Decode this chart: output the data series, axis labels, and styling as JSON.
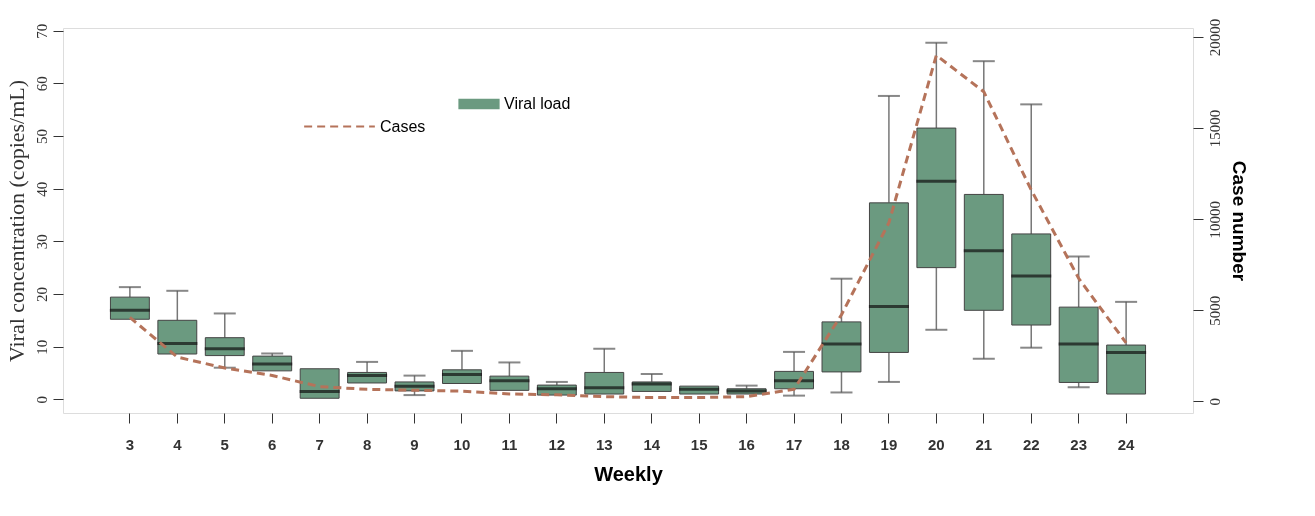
{
  "chart_data": {
    "type": "box",
    "xlabel": "Weekly",
    "ylabel": "Viral concentration (copies/mL)",
    "y2label": "Case number",
    "categories": [
      "3",
      "4",
      "5",
      "6",
      "7",
      "8",
      "9",
      "10",
      "11",
      "12",
      "13",
      "14",
      "15",
      "16",
      "17",
      "18",
      "19",
      "20",
      "21",
      "22",
      "23",
      "24"
    ],
    "ylim": [
      -2.6,
      70.5
    ],
    "yticks": [
      0,
      10,
      20,
      30,
      40,
      50,
      60,
      70
    ],
    "y2lim": [
      -650,
      20500
    ],
    "y2ticks": [
      0,
      {
        "value": 5000,
        "label": "5000"
      },
      {
        "value": 10000,
        "label": "10000"
      },
      {
        "value": 15000,
        "label": "15000"
      },
      {
        "value": 20000,
        "label": "20000"
      }
    ],
    "legend": "top left",
    "grid": false,
    "series": [
      {
        "name": "Viral load",
        "color": "#6b9a80",
        "boxes": [
          {
            "low": 15.2,
            "q1": 15.2,
            "median": 16.9,
            "q3": 19.4,
            "high": 21.3
          },
          {
            "low": 8.6,
            "q1": 8.6,
            "median": 10.6,
            "q3": 15.0,
            "high": 20.6
          },
          {
            "low": 6.0,
            "q1": 8.3,
            "median": 9.6,
            "q3": 11.7,
            "high": 16.3
          },
          {
            "low": 5.4,
            "q1": 5.4,
            "median": 6.7,
            "q3": 8.2,
            "high": 8.7
          },
          {
            "low": 0.2,
            "q1": 0.2,
            "median": 1.5,
            "q3": 5.8,
            "high": 5.8
          },
          {
            "low": 3.1,
            "q1": 3.1,
            "median": 4.5,
            "q3": 5.1,
            "high": 7.1
          },
          {
            "low": 0.8,
            "q1": 1.6,
            "median": 2.5,
            "q3": 3.3,
            "high": 4.5
          },
          {
            "low": 3.0,
            "q1": 3.0,
            "median": 4.7,
            "q3": 5.6,
            "high": 9.2
          },
          {
            "low": 1.7,
            "q1": 1.7,
            "median": 3.5,
            "q3": 4.4,
            "high": 7.0
          },
          {
            "low": 0.8,
            "q1": 0.8,
            "median": 2.0,
            "q3": 2.7,
            "high": 3.3
          },
          {
            "low": 1.0,
            "q1": 1.0,
            "median": 2.2,
            "q3": 5.1,
            "high": 9.6
          },
          {
            "low": 1.5,
            "q1": 1.5,
            "median": 2.9,
            "q3": 3.3,
            "high": 4.8
          },
          {
            "low": 1.0,
            "q1": 1.0,
            "median": 1.9,
            "q3": 2.5,
            "high": 2.5
          },
          {
            "low": 1.0,
            "q1": 1.0,
            "median": 1.6,
            "q3": 2.0,
            "high": 2.6
          },
          {
            "low": 0.7,
            "q1": 2.0,
            "median": 3.5,
            "q3": 5.3,
            "high": 9.0
          },
          {
            "low": 1.3,
            "q1": 5.2,
            "median": 10.5,
            "q3": 14.7,
            "high": 22.9
          },
          {
            "low": 3.3,
            "q1": 8.9,
            "median": 17.6,
            "q3": 37.3,
            "high": 57.6
          },
          {
            "low": 13.2,
            "q1": 25.0,
            "median": 41.4,
            "q3": 51.5,
            "high": 67.7
          },
          {
            "low": 7.7,
            "q1": 16.9,
            "median": 28.2,
            "q3": 38.9,
            "high": 64.2
          },
          {
            "low": 9.8,
            "q1": 14.1,
            "median": 23.4,
            "q3": 31.4,
            "high": 56.0
          },
          {
            "low": 2.3,
            "q1": 3.2,
            "median": 10.5,
            "q3": 17.5,
            "high": 27.1
          },
          {
            "low": 1.0,
            "q1": 1.0,
            "median": 8.9,
            "q3": 10.3,
            "high": 18.5
          }
        ]
      },
      {
        "name": "Cases",
        "type": "line",
        "axis": "y2",
        "color": "#b5735a",
        "line_style": "dashed",
        "values": [
          4600,
          2420,
          1820,
          1410,
          800,
          650,
          600,
          550,
          400,
          350,
          250,
          200,
          200,
          250,
          650,
          4750,
          9800,
          19000,
          17000,
          11600,
          6750,
          3200
        ]
      }
    ]
  }
}
